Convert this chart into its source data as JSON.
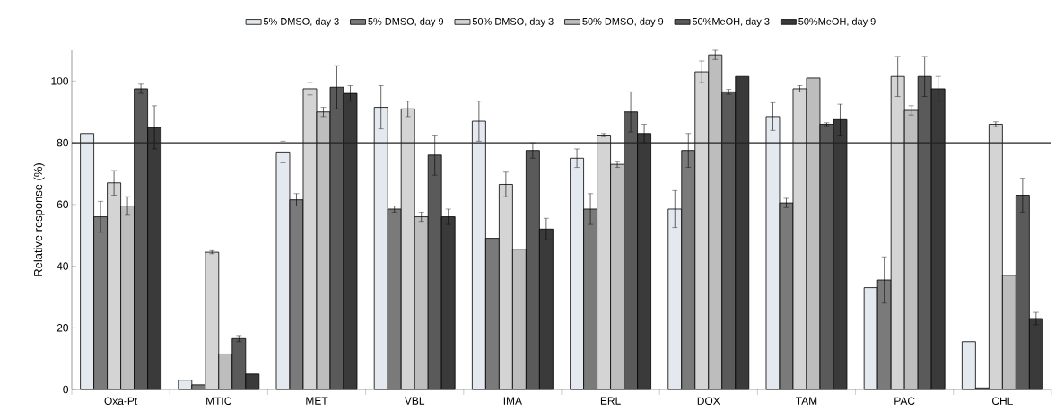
{
  "chart_data": {
    "type": "bar",
    "ylabel": "Relative response (%)",
    "categories": [
      "Oxa-Pt",
      "MTIC",
      "MET",
      "VBL",
      "IMA",
      "ERL",
      "DOX",
      "TAM",
      "PAC",
      "CHL"
    ],
    "series": [
      {
        "name": "5% DMSO, day 3",
        "color": "#e4e8ef",
        "values": [
          83,
          3,
          77,
          91.5,
          87,
          75,
          58.5,
          88.5,
          33,
          15.5
        ],
        "errors": [
          null,
          null,
          3.5,
          7,
          6.5,
          3,
          6,
          4.5,
          null,
          null
        ]
      },
      {
        "name": "5% DMSO, day 9",
        "color": "#7a7a7a",
        "values": [
          56,
          1.5,
          61.5,
          58.5,
          49,
          58.5,
          77.5,
          60.5,
          35.5,
          0.5
        ],
        "errors": [
          5,
          null,
          2,
          1,
          null,
          5,
          5.5,
          1.5,
          7.5,
          null
        ]
      },
      {
        "name": "50% DMSO, day 3",
        "color": "#d4d4d4",
        "values": [
          67,
          44.5,
          97.5,
          91,
          66.5,
          82.5,
          103,
          97.5,
          101.5,
          86
        ],
        "errors": [
          4,
          0.5,
          2,
          2.5,
          4,
          0.5,
          3.5,
          1,
          6.5,
          0.8
        ]
      },
      {
        "name": "50% DMSO, day 9",
        "color": "#bdbdbd",
        "values": [
          59.5,
          11.5,
          90,
          56,
          45.5,
          73,
          108.5,
          101,
          90.5,
          37
        ],
        "errors": [
          3,
          null,
          1.5,
          1.5,
          null,
          1,
          1.5,
          null,
          1.5,
          null
        ]
      },
      {
        "name": "50%MeOH, day 3",
        "color": "#5a5a5a",
        "values": [
          97.5,
          16.5,
          98,
          76,
          77.5,
          90,
          96.5,
          86,
          101.5,
          63
        ],
        "errors": [
          1.5,
          1,
          7,
          6.5,
          2.5,
          6.5,
          0.8,
          0.5,
          6.5,
          5.5
        ]
      },
      {
        "name": "50%MeOH, day 9",
        "color": "#3a3a3a",
        "values": [
          85,
          5,
          96,
          56,
          52,
          83,
          101.5,
          87.5,
          97.5,
          23
        ],
        "errors": [
          7,
          null,
          2.5,
          2.5,
          3.5,
          3,
          null,
          5,
          4,
          2
        ]
      }
    ],
    "ylim": [
      0,
      110
    ],
    "yticks": [
      0,
      20,
      40,
      60,
      80,
      100
    ],
    "ref_lines": [
      {
        "axis": "y",
        "value": 80,
        "color": "#222222"
      }
    ],
    "legend": "top",
    "grid": false
  }
}
